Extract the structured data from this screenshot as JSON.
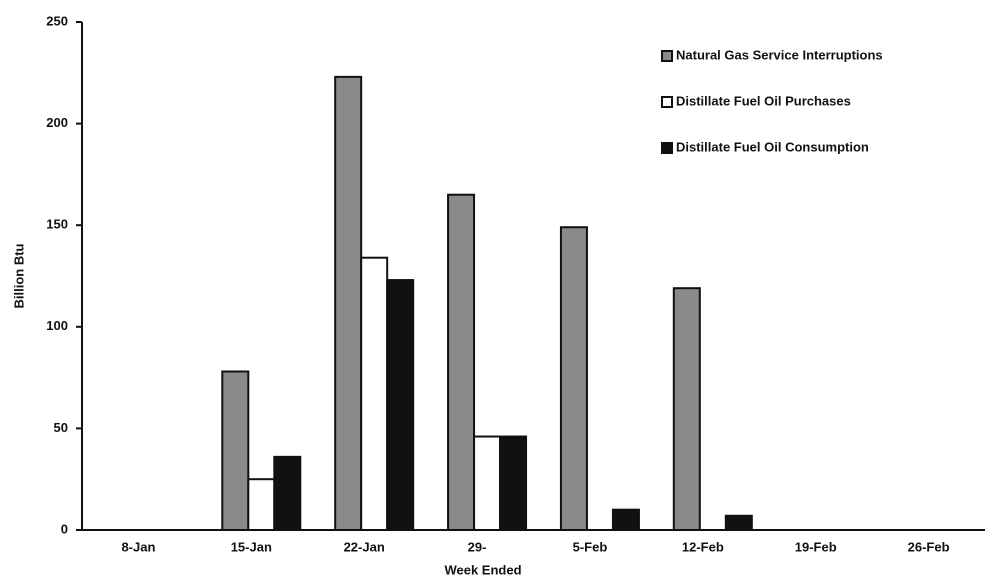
{
  "chart_data": {
    "type": "bar",
    "xlabel": "Week Ended",
    "ylabel": "Billion Btu",
    "categories": [
      "8-Jan",
      "15-Jan",
      "22-Jan",
      "29-",
      "5-Feb",
      "12-Feb",
      "19-Feb",
      "26-Feb"
    ],
    "series": [
      {
        "name": "Natural Gas Service Interruptions",
        "color": "#8a8a8a",
        "values": [
          0,
          78,
          223,
          165,
          149,
          119,
          0,
          0
        ]
      },
      {
        "name": "Distillate Fuel Oil Purchases",
        "color": "#ffffff",
        "values": [
          0,
          25,
          134,
          46,
          0,
          0,
          0,
          0
        ]
      },
      {
        "name": "Distillate Fuel Oil Consumption",
        "color": "#111111",
        "values": [
          0,
          36,
          123,
          46,
          10,
          7,
          0,
          0
        ]
      }
    ],
    "ylim": [
      0,
      250
    ],
    "yticks": [
      0,
      50,
      100,
      150,
      200,
      250
    ],
    "grid": false,
    "legend": "upper right"
  }
}
